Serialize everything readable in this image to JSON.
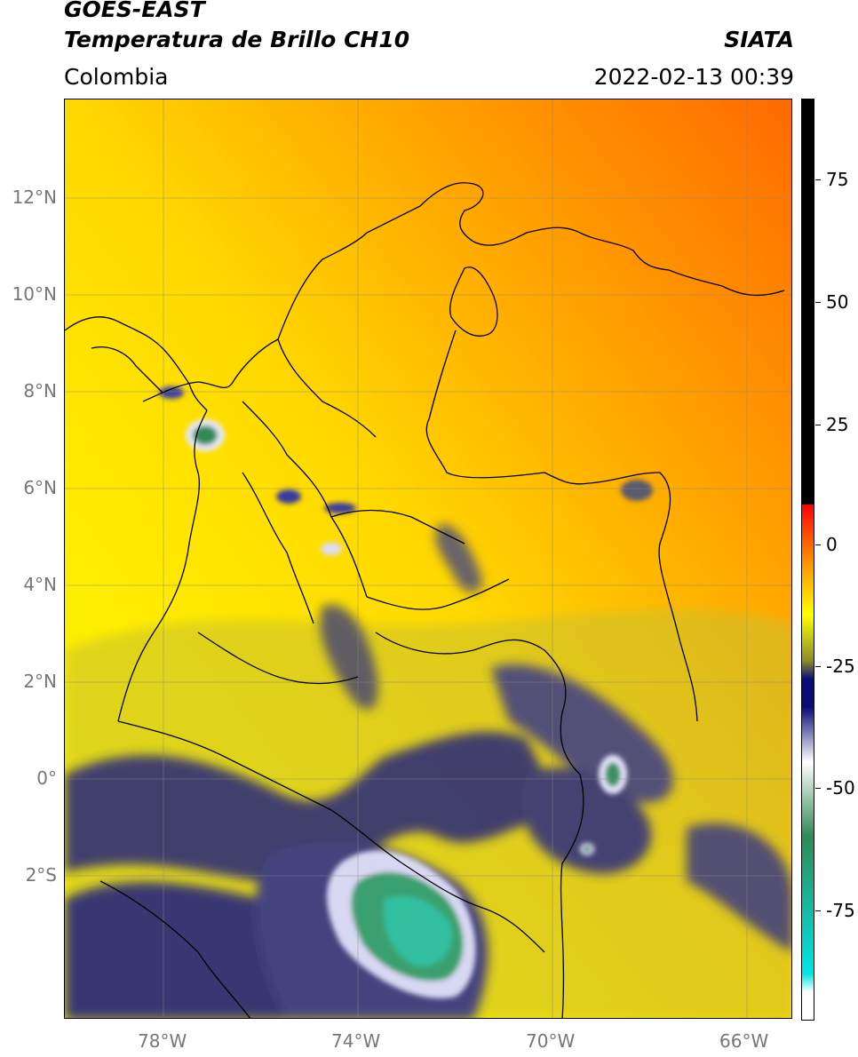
{
  "header": {
    "satellite": "GOES-EAST",
    "product": "Temperatura de Brillo CH10",
    "region": "Colombia",
    "organization": "SIATA",
    "datetime": "2022-02-13 00:39"
  },
  "map": {
    "lat_labels": [
      "12°N",
      "10°N",
      "8°N",
      "6°N",
      "4°N",
      "2°N",
      "0°",
      "2°S"
    ],
    "lon_labels": [
      "78°W",
      "74°W",
      "70°W",
      "66°W"
    ]
  },
  "colorbar": {
    "ticks": [
      "75",
      "50",
      "25",
      "0",
      "-25",
      "-50",
      "-75"
    ],
    "colors": {
      "top": "#000000",
      "warm": "#ff0000",
      "orange": "#ff8c00",
      "yellow": "#ffff00",
      "olive": "#8c8c28",
      "navy": "#0a0a78",
      "white": "#ffffff",
      "green": "#2e8b57",
      "cyan": "#00e5e5"
    }
  }
}
